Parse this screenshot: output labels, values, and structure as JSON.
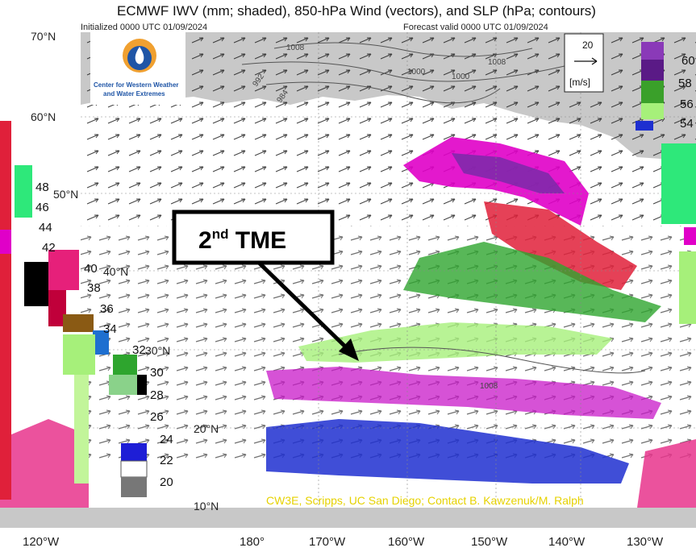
{
  "title": "ECMWF IWV (mm; shaded), 850-hPa Wind (vectors), and SLP (hPa; contours)",
  "subtitle_left": "Initialized 0000 UTC 01/09/2024",
  "subtitle_right": "Forecast valid 0000 UTC 01/09/2024",
  "logo": {
    "line1": "Center for Western Weather",
    "line2": "and Water Extremes",
    "icon": "cw3e-drop-icon"
  },
  "annotation": {
    "prefix": "2",
    "sup": "nd",
    "suffix": " TME"
  },
  "credit": "CW3E, Scripps, UC San Diego; Contact B. Kawzenuk/M. Ralph",
  "vector_ref": {
    "value": "20",
    "unit": "[m/s]"
  },
  "lat_labels": [
    "70°N",
    "60°N",
    "50°N",
    "40°N",
    "30°N",
    "20°N",
    "10°N"
  ],
  "lon_labels": [
    "120°W",
    "180°",
    "170°W",
    "160°W",
    "150°W",
    "140°W",
    "130°W"
  ],
  "slp_contours": [
    "1008",
    "1008",
    "1000",
    "992",
    "984",
    "1000",
    "1008"
  ],
  "legend_left": [
    "48",
    "46",
    "44",
    "42",
    "40",
    "38",
    "36",
    "34",
    "32",
    "30",
    "28",
    "26",
    "24",
    "22",
    "20"
  ],
  "legend_right": [
    "60",
    "58",
    "56",
    "54"
  ],
  "colors": {
    "land": "#c8c8c8",
    "ocean": "#ffffff",
    "magenta": "#e000c8",
    "purple": "#7a2aa8",
    "red": "#e0203a",
    "green": "#2ea52e",
    "lime": "#a6f07a",
    "blue": "#1e2fd0",
    "callout_border": "#000000",
    "credit_text": "#e6d200"
  }
}
